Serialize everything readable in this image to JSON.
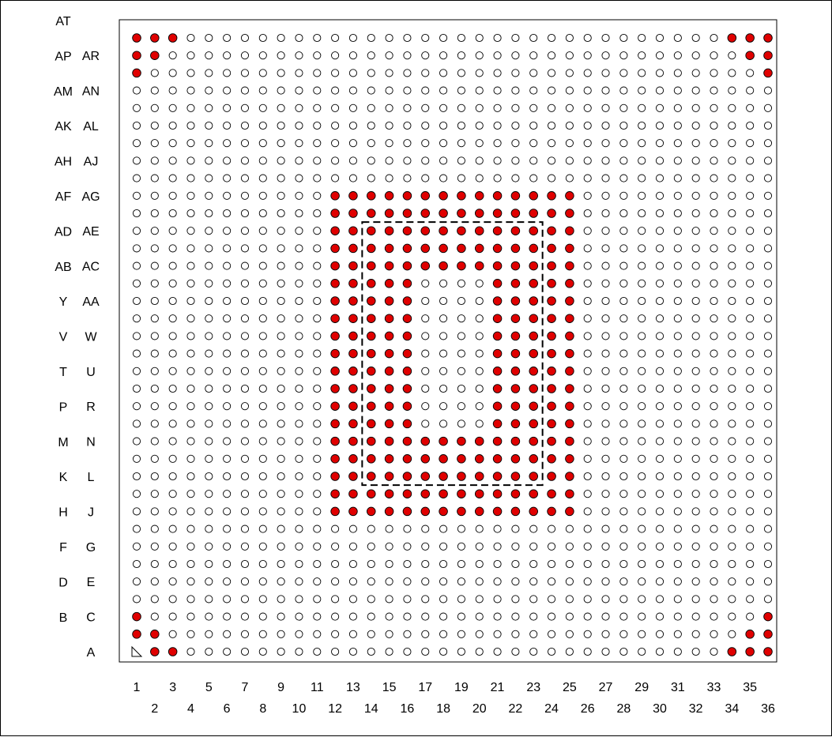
{
  "diagram": {
    "rows": [
      "A",
      "B",
      "C",
      "D",
      "E",
      "F",
      "G",
      "H",
      "J",
      "K",
      "L",
      "M",
      "N",
      "P",
      "R",
      "T",
      "U",
      "V",
      "W",
      "Y",
      "AA",
      "AB",
      "AC",
      "AD",
      "AE",
      "AF",
      "AG",
      "AH",
      "AJ",
      "AK",
      "AL",
      "AM",
      "AN",
      "AP",
      "AR",
      "AT"
    ],
    "columns": [
      "1",
      "2",
      "3",
      "4",
      "5",
      "6",
      "7",
      "8",
      "9",
      "10",
      "11",
      "12",
      "13",
      "14",
      "15",
      "16",
      "17",
      "18",
      "19",
      "20",
      "21",
      "22",
      "23",
      "24",
      "25",
      "26",
      "27",
      "28",
      "29",
      "30",
      "31",
      "32",
      "33",
      "34",
      "35",
      "36"
    ],
    "pin1_marker": {
      "row": "A",
      "column": "1"
    },
    "filled_pins": {
      "A": [
        "2",
        "3",
        "34",
        "35",
        "36"
      ],
      "B": [
        "1",
        "2",
        "35",
        "36"
      ],
      "C": [
        "1",
        "36"
      ],
      "AP": [
        "1",
        "36"
      ],
      "AR": [
        "1",
        "2",
        "35",
        "36"
      ],
      "AT": [
        "1",
        "2",
        "3",
        "34",
        "35",
        "36"
      ],
      "J": [
        "12-25"
      ],
      "K": [
        "12-25"
      ],
      "L": [
        "12-25"
      ],
      "M": [
        "12-25"
      ],
      "N": [
        "12-25"
      ],
      "P": [
        "12-16",
        "21-25"
      ],
      "R": [
        "12-16",
        "21-25"
      ],
      "T": [
        "12-16",
        "21-25"
      ],
      "U": [
        "12-16",
        "21-25"
      ],
      "V": [
        "12-16",
        "21-25"
      ],
      "W": [
        "12-16",
        "21-25"
      ],
      "Y": [
        "12-16",
        "21-25"
      ],
      "AA": [
        "12-16",
        "21-25"
      ],
      "AB": [
        "12-16",
        "21-25"
      ],
      "AC": [
        "12-25"
      ],
      "AD": [
        "12-25"
      ],
      "AE": [
        "12-25"
      ],
      "AF": [
        "12-25"
      ],
      "AG": [
        "12-25"
      ]
    },
    "dashed_region": {
      "row_from": "L",
      "row_to": "AE",
      "column_from": "14",
      "column_to": "23"
    },
    "colors": {
      "filled": "#e00000",
      "outline": "#000000",
      "background": "#ffffff"
    }
  }
}
